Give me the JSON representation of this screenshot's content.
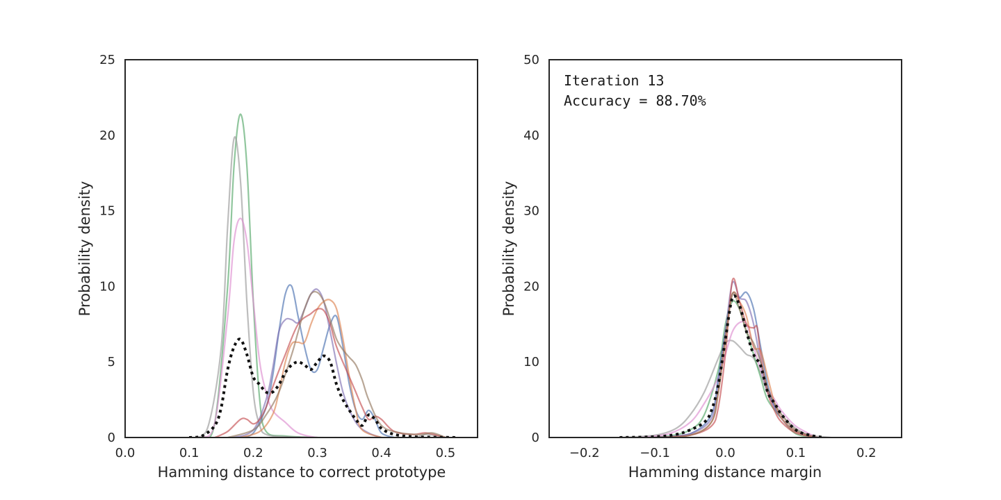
{
  "chart_data": [
    {
      "type": "line",
      "xlabel": "Hamming distance to correct prototype",
      "ylabel": "Probability density",
      "xlim": [
        0.0,
        0.55
      ],
      "ylim": [
        0,
        25
      ],
      "xticks": [
        "0.0",
        "0.1",
        "0.2",
        "0.3",
        "0.4",
        "0.5"
      ],
      "yticks": [
        "0",
        "5",
        "10",
        "15",
        "20",
        "25"
      ],
      "grid": false,
      "series": [
        {
          "color": "#55a868",
          "style": "solid",
          "x": [
            0.12,
            0.14,
            0.16,
            0.17,
            0.18,
            0.19,
            0.2,
            0.21,
            0.22,
            0.25,
            0.3
          ],
          "y": [
            0,
            1,
            10,
            18,
            21.4,
            18,
            9,
            2.5,
            0.4,
            0.1,
            0
          ]
        },
        {
          "color": "#999999",
          "style": "solid",
          "x": [
            0.11,
            0.13,
            0.15,
            0.16,
            0.17,
            0.18,
            0.19,
            0.2,
            0.21,
            0.22,
            0.25,
            0.3,
            0.35,
            0.4,
            0.45,
            0.47,
            0.5
          ],
          "y": [
            0,
            0.8,
            6,
            14,
            19.8,
            17,
            9,
            3,
            0.8,
            0.2,
            0.05,
            0,
            0,
            0,
            0,
            0.2,
            0
          ]
        },
        {
          "color": "#dd8ed0",
          "style": "solid",
          "x": [
            0.12,
            0.14,
            0.16,
            0.17,
            0.18,
            0.19,
            0.2,
            0.21,
            0.22,
            0.23,
            0.25,
            0.27,
            0.3,
            0.33
          ],
          "y": [
            0,
            1,
            8,
            13,
            14.5,
            13,
            9,
            5,
            3,
            1.8,
            1,
            0.3,
            0,
            0
          ]
        },
        {
          "color": "#4c72b0",
          "style": "solid",
          "x": [
            0.18,
            0.2,
            0.22,
            0.23,
            0.24,
            0.25,
            0.26,
            0.27,
            0.28,
            0.29,
            0.3,
            0.31,
            0.32,
            0.33,
            0.34,
            0.35,
            0.36,
            0.37,
            0.38,
            0.39,
            0.4,
            0.42
          ],
          "y": [
            0,
            0.3,
            2,
            4,
            7,
            9.5,
            10,
            8,
            6,
            4.5,
            4.5,
            6,
            7.5,
            8,
            6,
            3.5,
            1.8,
            1.2,
            1.8,
            1.2,
            0.3,
            0
          ]
        },
        {
          "color": "#8172b3",
          "style": "solid",
          "x": [
            0.17,
            0.2,
            0.22,
            0.23,
            0.24,
            0.25,
            0.26,
            0.27,
            0.28,
            0.29,
            0.3,
            0.31,
            0.32,
            0.34,
            0.36,
            0.38,
            0.4
          ],
          "y": [
            0,
            0.5,
            2.5,
            4.5,
            7,
            7.8,
            7.8,
            7.6,
            8.5,
            9.5,
            9.8,
            9,
            7,
            3,
            1,
            0.3,
            0
          ]
        },
        {
          "color": "#dd8452",
          "style": "solid",
          "x": [
            0.18,
            0.21,
            0.23,
            0.24,
            0.25,
            0.26,
            0.27,
            0.28,
            0.29,
            0.3,
            0.31,
            0.32,
            0.33,
            0.34,
            0.35,
            0.36,
            0.37,
            0.4
          ],
          "y": [
            0,
            0.4,
            1.5,
            3,
            5,
            6.2,
            6.3,
            6.3,
            7.5,
            8.5,
            9,
            9.1,
            8.5,
            6.5,
            4,
            1.8,
            0.5,
            0
          ]
        },
        {
          "color": "#c44e52",
          "style": "solid",
          "x": [
            0.14,
            0.16,
            0.18,
            0.19,
            0.2,
            0.21,
            0.22,
            0.23,
            0.25,
            0.27,
            0.29,
            0.3,
            0.31,
            0.32,
            0.33,
            0.35,
            0.36,
            0.37,
            0.38,
            0.39,
            0.4,
            0.42,
            0.45,
            0.47,
            0.5
          ],
          "y": [
            0,
            0.4,
            1.2,
            1.2,
            0.9,
            1.2,
            2,
            3.3,
            5.5,
            7.5,
            8.2,
            8.5,
            8.4,
            7.5,
            6,
            4,
            3,
            2,
            1.2,
            1.4,
            1.2,
            0.4,
            0.2,
            0.3,
            0
          ]
        },
        {
          "color": "#937860",
          "style": "solid",
          "x": [
            0.16,
            0.2,
            0.22,
            0.24,
            0.26,
            0.27,
            0.28,
            0.29,
            0.3,
            0.31,
            0.32,
            0.33,
            0.34,
            0.35,
            0.36,
            0.37,
            0.38,
            0.4,
            0.43,
            0.46,
            0.48,
            0.5
          ],
          "y": [
            0,
            0.5,
            1.5,
            3,
            5.5,
            7,
            8.5,
            9.5,
            9.6,
            9,
            7.8,
            6.5,
            5.8,
            5.3,
            4.8,
            3.8,
            2.5,
            0.8,
            0.3,
            0.2,
            0.3,
            0
          ]
        },
        {
          "color": "#111111",
          "style": "dotted",
          "x": [
            0.1,
            0.12,
            0.14,
            0.15,
            0.16,
            0.17,
            0.18,
            0.19,
            0.2,
            0.21,
            0.22,
            0.23,
            0.24,
            0.25,
            0.26,
            0.27,
            0.28,
            0.29,
            0.3,
            0.31,
            0.32,
            0.33,
            0.34,
            0.35,
            0.36,
            0.37,
            0.38,
            0.39,
            0.4,
            0.42,
            0.45,
            0.48,
            0.52
          ],
          "y": [
            0,
            0.1,
            0.8,
            2,
            4.5,
            6,
            6.5,
            5.5,
            4,
            3.5,
            3,
            3,
            3.5,
            4.3,
            4.8,
            5,
            4.8,
            4.5,
            5,
            5.4,
            5,
            3.5,
            2.5,
            1.8,
            1.2,
            0.8,
            1.5,
            1.2,
            0.6,
            0.2,
            0.05,
            0.02,
            0
          ]
        }
      ]
    },
    {
      "type": "line",
      "xlabel": "Hamming distance margin",
      "ylabel": "Probability density",
      "xlim": [
        -0.25,
        0.25
      ],
      "ylim": [
        0,
        50
      ],
      "xticks": [
        "−0.2",
        "−0.1",
        "0.0",
        "0.1",
        "0.2"
      ],
      "yticks": [
        "0",
        "10",
        "20",
        "30",
        "40",
        "50"
      ],
      "grid": false,
      "annotation": [
        "Iteration 13",
        "Accuracy = 88.70%"
      ],
      "series": [
        {
          "color": "#999999",
          "style": "solid",
          "x": [
            -0.15,
            -0.1,
            -0.07,
            -0.05,
            -0.03,
            -0.01,
            0.0,
            0.01,
            0.02,
            0.03,
            0.04,
            0.05,
            0.06,
            0.08,
            0.1,
            0.12,
            0.15
          ],
          "y": [
            0,
            0.3,
            1.2,
            3,
            6,
            10.5,
            12.5,
            12.8,
            12,
            11,
            10.5,
            8.5,
            6,
            3,
            1.2,
            0.3,
            0
          ]
        },
        {
          "color": "#55a868",
          "style": "solid",
          "x": [
            -0.12,
            -0.08,
            -0.05,
            -0.03,
            -0.01,
            0.0,
            0.01,
            0.02,
            0.03,
            0.04,
            0.05,
            0.06,
            0.08,
            0.1,
            0.13
          ],
          "y": [
            0,
            0.2,
            1,
            3,
            9,
            15,
            18,
            17,
            14,
            11,
            8,
            5,
            2.5,
            0.5,
            0
          ]
        },
        {
          "color": "#dd8ed0",
          "style": "solid",
          "x": [
            -0.12,
            -0.08,
            -0.05,
            -0.03,
            -0.01,
            0.0,
            0.01,
            0.02,
            0.03,
            0.04,
            0.05,
            0.06,
            0.07,
            0.08,
            0.1,
            0.13
          ],
          "y": [
            0,
            0.5,
            2,
            4.5,
            8,
            11,
            14,
            15.2,
            15,
            12,
            9,
            6.5,
            5,
            3.5,
            1.5,
            0
          ]
        },
        {
          "color": "#4c72b0",
          "style": "solid",
          "x": [
            -0.1,
            -0.05,
            -0.02,
            -0.01,
            0.0,
            0.01,
            0.02,
            0.03,
            0.04,
            0.05,
            0.06,
            0.07,
            0.08,
            0.1,
            0.13
          ],
          "y": [
            0,
            0.5,
            3,
            8,
            14,
            19,
            18.5,
            19.2,
            17,
            12,
            7,
            4,
            2.5,
            0.8,
            0
          ]
        },
        {
          "color": "#8172b3",
          "style": "solid",
          "x": [
            -0.1,
            -0.05,
            -0.02,
            -0.01,
            0.0,
            0.01,
            0.02,
            0.03,
            0.04,
            0.05,
            0.06,
            0.08,
            0.1,
            0.13
          ],
          "y": [
            0,
            0.5,
            2.5,
            7,
            14,
            20.5,
            18.5,
            18,
            15,
            10,
            6,
            2.5,
            0.8,
            0
          ]
        },
        {
          "color": "#dd8452",
          "style": "solid",
          "x": [
            -0.1,
            -0.05,
            -0.02,
            -0.01,
            0.0,
            0.01,
            0.02,
            0.03,
            0.04,
            0.05,
            0.06,
            0.07,
            0.08,
            0.1,
            0.13
          ],
          "y": [
            0,
            0.3,
            2,
            6,
            13,
            19,
            18,
            16,
            12,
            11.5,
            8,
            4.5,
            2.5,
            0.8,
            0
          ]
        },
        {
          "color": "#c44e52",
          "style": "solid",
          "x": [
            -0.1,
            -0.05,
            -0.02,
            -0.01,
            0.0,
            0.01,
            0.02,
            0.03,
            0.04,
            0.045,
            0.05,
            0.06,
            0.07,
            0.08,
            0.1,
            0.13
          ],
          "y": [
            0,
            0.3,
            1.5,
            4,
            11,
            20.8,
            18,
            15,
            14.5,
            14.6,
            11,
            6,
            3.5,
            2,
            0.6,
            0
          ]
        },
        {
          "color": "#937860",
          "style": "solid",
          "x": [
            -0.1,
            -0.05,
            -0.02,
            -0.01,
            0.0,
            0.01,
            0.02,
            0.03,
            0.04,
            0.05,
            0.06,
            0.07,
            0.08,
            0.1,
            0.13
          ],
          "y": [
            0,
            0.3,
            2,
            6,
            13,
            19,
            17,
            14,
            12.5,
            10,
            6.5,
            4.5,
            3,
            1,
            0
          ]
        },
        {
          "color": "#111111",
          "style": "dotted",
          "x": [
            -0.15,
            -0.1,
            -0.07,
            -0.05,
            -0.03,
            -0.02,
            -0.01,
            0.0,
            0.01,
            0.02,
            0.03,
            0.04,
            0.05,
            0.06,
            0.07,
            0.08,
            0.1,
            0.12,
            0.14
          ],
          "y": [
            0,
            0.1,
            0.4,
            1,
            2,
            3.5,
            7,
            13,
            18.5,
            17.5,
            14,
            11,
            9.5,
            6,
            4.5,
            3,
            1,
            0.3,
            0
          ]
        }
      ]
    }
  ]
}
